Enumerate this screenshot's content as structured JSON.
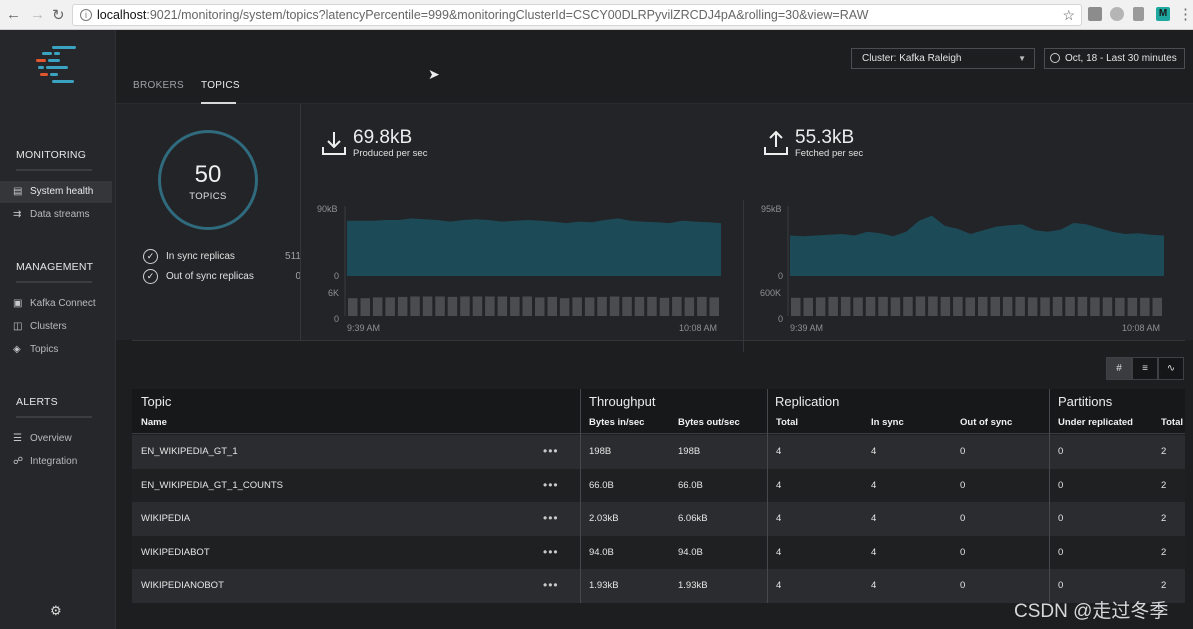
{
  "browser": {
    "url_host": "localhost",
    "url_rest": ":9021/monitoring/system/topics?latencyPercentile=999&monitoringClusterId=CSCY00DLRPyvilZRCDJ4pA&rolling=30&view=RAW"
  },
  "sidebar": {
    "monitoring_label": "MONITORING",
    "monitoring_items": [
      {
        "label": "System health",
        "icon": "chart-icon"
      },
      {
        "label": "Data streams",
        "icon": "stream-icon"
      }
    ],
    "management_label": "MANAGEMENT",
    "management_items": [
      {
        "label": "Kafka Connect",
        "icon": "connect-icon"
      },
      {
        "label": "Clusters",
        "icon": "clusters-icon"
      },
      {
        "label": "Topics",
        "icon": "layers-icon"
      }
    ],
    "alerts_label": "ALERTS",
    "alerts_items": [
      {
        "label": "Overview",
        "icon": "list-icon"
      },
      {
        "label": "Integration",
        "icon": "integration-icon"
      }
    ]
  },
  "tabs": {
    "brokers": "BROKERS",
    "topics": "TOPICS"
  },
  "cluster_select": "Cluster: Kafka Raleigh",
  "time_range": "Oct, 18 - Last 30 minutes",
  "summary": {
    "topic_count": "50",
    "topic_label": "TOPICS",
    "in_sync_label": "In sync replicas",
    "in_sync_value": "511",
    "out_sync_label": "Out of sync replicas",
    "out_sync_value": "0"
  },
  "produced": {
    "value": "69.8kB",
    "label": "Produced per sec",
    "ytop": "90kB",
    "ybot": "0",
    "count_top": "6K",
    "count_bot": "0",
    "t_start": "9:39 AM",
    "t_end": "10:08 AM"
  },
  "fetched": {
    "value": "55.3kB",
    "label": "Fetched per sec",
    "ytop": "95kB",
    "ybot": "0",
    "count_top": "600K",
    "count_bot": "0",
    "t_start": "9:39 AM",
    "t_end": "10:08 AM"
  },
  "chart_data": [
    {
      "type": "area",
      "title": "",
      "ylim": [
        0,
        90
      ],
      "unit": "kB",
      "series": [
        {
          "values": [
            71,
            71,
            71,
            72,
            72,
            74,
            73,
            72,
            70,
            72,
            73,
            72,
            70,
            71,
            72,
            71,
            70,
            68,
            70,
            69,
            72,
            74,
            71,
            70,
            69,
            68,
            71,
            70,
            69,
            68
          ]
        }
      ],
      "counts": {
        "ylim": [
          0,
          6000
        ],
        "values": [
          4100,
          4100,
          4300,
          4300,
          4400,
          4500,
          4500,
          4500,
          4400,
          4500,
          4500,
          4500,
          4500,
          4400,
          4500,
          4300,
          4400,
          4100,
          4300,
          4300,
          4400,
          4500,
          4400,
          4400,
          4400,
          4200,
          4400,
          4300,
          4400,
          4300
        ]
      }
    },
    {
      "type": "area",
      "title": "",
      "ylim": [
        0,
        95
      ],
      "unit": "kB",
      "series": [
        {
          "values": [
            55,
            54,
            55,
            56,
            57,
            55,
            60,
            58,
            54,
            60,
            75,
            82,
            68,
            64,
            57,
            62,
            67,
            69,
            70,
            62,
            60,
            63,
            72,
            70,
            65,
            60,
            57,
            58,
            56,
            55
          ]
        }
      ],
      "counts": {
        "ylim": [
          0,
          600000
        ],
        "values": [
          420000,
          420000,
          430000,
          440000,
          440000,
          430000,
          440000,
          440000,
          430000,
          440000,
          450000,
          450000,
          440000,
          440000,
          430000,
          440000,
          440000,
          440000,
          440000,
          430000,
          430000,
          440000,
          440000,
          440000,
          430000,
          430000,
          420000,
          420000,
          420000,
          420000
        ]
      }
    }
  ],
  "table": {
    "groups": {
      "topic": "Topic",
      "throughput": "Throughput",
      "replication": "Replication",
      "partitions": "Partitions"
    },
    "cols": {
      "name": "Name",
      "bytes_in": "Bytes in/sec",
      "bytes_out": "Bytes out/sec",
      "total": "Total",
      "in_sync": "In sync",
      "out_sync": "Out of sync",
      "under": "Under replicated",
      "ptotal": "Total"
    },
    "rows": [
      {
        "name": "EN_WIKIPEDIA_GT_1",
        "bin": "198B",
        "bout": "198B",
        "rtotal": "4",
        "rin": "4",
        "rout": "0",
        "under": "0",
        "ptotal": "2"
      },
      {
        "name": "EN_WIKIPEDIA_GT_1_COUNTS",
        "bin": "66.0B",
        "bout": "66.0B",
        "rtotal": "4",
        "rin": "4",
        "rout": "0",
        "under": "0",
        "ptotal": "2"
      },
      {
        "name": "WIKIPEDIA",
        "bin": "2.03kB",
        "bout": "6.06kB",
        "rtotal": "4",
        "rin": "4",
        "rout": "0",
        "under": "0",
        "ptotal": "2"
      },
      {
        "name": "WIKIPEDIABOT",
        "bin": "94.0B",
        "bout": "94.0B",
        "rtotal": "4",
        "rin": "4",
        "rout": "0",
        "under": "0",
        "ptotal": "2"
      },
      {
        "name": "WIKIPEDIANOBOT",
        "bin": "1.93kB",
        "bout": "1.93kB",
        "rtotal": "4",
        "rin": "4",
        "rout": "0",
        "under": "0",
        "ptotal": "2"
      }
    ]
  },
  "watermark": "CSDN @走过冬季",
  "colors": {
    "accent": "#2f6a7d",
    "area": "#1c4a57",
    "bars": "#4a4c50"
  }
}
